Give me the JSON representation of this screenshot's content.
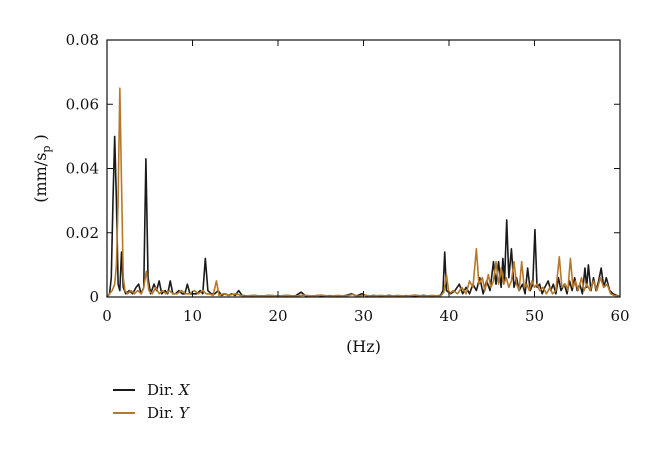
{
  "chart_data": {
    "type": "line",
    "xlabel": "(Hz)",
    "ylabel": {
      "main": "(mm/s",
      "sub": "p",
      "close": " )"
    },
    "xlim": [
      0,
      60
    ],
    "ylim": [
      0,
      0.08
    ],
    "xticks": [
      0,
      10,
      20,
      30,
      40,
      50,
      60
    ],
    "yticks": [
      0,
      0.02,
      0.04,
      0.06,
      0.08
    ],
    "xtick_labels": [
      "0",
      "10",
      "20",
      "30",
      "40",
      "50",
      "60"
    ],
    "ytick_labels": [
      "0",
      "0.02",
      "0.04",
      "0.06",
      "0.08"
    ],
    "grid": false,
    "legend_position": "bottom-left",
    "series": [
      {
        "name": "Dir. X",
        "legend": {
          "prefix": "Dir. ",
          "axis": "X"
        },
        "color": "#1a1a1a",
        "points": [
          [
            0,
            0.0
          ],
          [
            0.3,
            0.001
          ],
          [
            0.5,
            0.006
          ],
          [
            0.7,
            0.03
          ],
          [
            0.9,
            0.05
          ],
          [
            1.1,
            0.03
          ],
          [
            1.3,
            0.004
          ],
          [
            1.5,
            0.002
          ],
          [
            1.7,
            0.014
          ],
          [
            1.9,
            0.003
          ],
          [
            2.2,
            0.001
          ],
          [
            2.6,
            0.002
          ],
          [
            3.0,
            0.001
          ],
          [
            3.4,
            0.003
          ],
          [
            3.7,
            0.004
          ],
          [
            4.0,
            0.001
          ],
          [
            4.3,
            0.003
          ],
          [
            4.55,
            0.043
          ],
          [
            4.8,
            0.006
          ],
          [
            5.1,
            0.001
          ],
          [
            5.5,
            0.004
          ],
          [
            5.8,
            0.002
          ],
          [
            6.1,
            0.005
          ],
          [
            6.4,
            0.001
          ],
          [
            6.8,
            0.002
          ],
          [
            7.1,
            0.001
          ],
          [
            7.4,
            0.005
          ],
          [
            7.7,
            0.001
          ],
          [
            8.0,
            0.001
          ],
          [
            8.4,
            0.002
          ],
          [
            8.8,
            0.001
          ],
          [
            9.1,
            0.001
          ],
          [
            9.4,
            0.004
          ],
          [
            9.7,
            0.001
          ],
          [
            10.1,
            0.001
          ],
          [
            10.5,
            0.001
          ],
          [
            10.9,
            0.002
          ],
          [
            11.2,
            0.001
          ],
          [
            11.5,
            0.012
          ],
          [
            11.8,
            0.002
          ],
          [
            12.2,
            0.001
          ],
          [
            12.6,
            0.001
          ],
          [
            13.0,
            0.002
          ],
          [
            13.4,
            0.0005
          ],
          [
            13.8,
            0.001
          ],
          [
            14.2,
            0.0005
          ],
          [
            14.6,
            0.001
          ],
          [
            15.0,
            0.0005
          ],
          [
            15.4,
            0.002
          ],
          [
            15.8,
            0.0005
          ],
          [
            16.5,
            0.0003
          ],
          [
            17.2,
            0.0005
          ],
          [
            18.0,
            0.0003
          ],
          [
            19.0,
            0.0005
          ],
          [
            20.0,
            0.0003
          ],
          [
            21.0,
            0.0005
          ],
          [
            22.0,
            0.0003
          ],
          [
            22.7,
            0.0015
          ],
          [
            23.3,
            0.0002
          ],
          [
            24.0,
            0.0003
          ],
          [
            24.7,
            0.0005
          ],
          [
            25.3,
            0.0002
          ],
          [
            26.0,
            0.0004
          ],
          [
            27.0,
            0.0002
          ],
          [
            28.0,
            0.0005
          ],
          [
            28.6,
            0.001
          ],
          [
            29.2,
            0.0003
          ],
          [
            29.8,
            0.001
          ],
          [
            30.5,
            0.0002
          ],
          [
            31.2,
            0.0005
          ],
          [
            32.0,
            0.0002
          ],
          [
            33.0,
            0.0005
          ],
          [
            34.0,
            0.0002
          ],
          [
            35.0,
            0.0004
          ],
          [
            36.0,
            0.0002
          ],
          [
            37.0,
            0.0005
          ],
          [
            38.0,
            0.0002
          ],
          [
            39.0,
            0.0005
          ],
          [
            39.3,
            0.002
          ],
          [
            39.5,
            0.014
          ],
          [
            39.7,
            0.002
          ],
          [
            40.2,
            0.001
          ],
          [
            40.7,
            0.002
          ],
          [
            41.2,
            0.004
          ],
          [
            41.6,
            0.001
          ],
          [
            42.0,
            0.003
          ],
          [
            42.4,
            0.001
          ],
          [
            42.8,
            0.004
          ],
          [
            43.2,
            0.002
          ],
          [
            43.6,
            0.006
          ],
          [
            44.0,
            0.001
          ],
          [
            44.4,
            0.005
          ],
          [
            44.8,
            0.002
          ],
          [
            45.2,
            0.011
          ],
          [
            45.5,
            0.004
          ],
          [
            45.8,
            0.011
          ],
          [
            46.1,
            0.003
          ],
          [
            46.3,
            0.012
          ],
          [
            46.5,
            0.005
          ],
          [
            46.75,
            0.024
          ],
          [
            47.0,
            0.006
          ],
          [
            47.3,
            0.015
          ],
          [
            47.6,
            0.003
          ],
          [
            47.9,
            0.006
          ],
          [
            48.2,
            0.002
          ],
          [
            48.6,
            0.004
          ],
          [
            48.9,
            0.001
          ],
          [
            49.2,
            0.009
          ],
          [
            49.5,
            0.002
          ],
          [
            49.8,
            0.004
          ],
          [
            50.05,
            0.021
          ],
          [
            50.3,
            0.003
          ],
          [
            50.6,
            0.004
          ],
          [
            50.9,
            0.001
          ],
          [
            51.2,
            0.003
          ],
          [
            51.6,
            0.005
          ],
          [
            51.9,
            0.002
          ],
          [
            52.2,
            0.004
          ],
          [
            52.5,
            0.001
          ],
          [
            52.8,
            0.006
          ],
          [
            53.1,
            0.002
          ],
          [
            53.5,
            0.004
          ],
          [
            53.8,
            0.001
          ],
          [
            54.1,
            0.005
          ],
          [
            54.4,
            0.002
          ],
          [
            54.7,
            0.006
          ],
          [
            55.0,
            0.002
          ],
          [
            55.3,
            0.004
          ],
          [
            55.6,
            0.001
          ],
          [
            55.9,
            0.009
          ],
          [
            56.1,
            0.003
          ],
          [
            56.3,
            0.01
          ],
          [
            56.6,
            0.002
          ],
          [
            56.9,
            0.006
          ],
          [
            57.2,
            0.002
          ],
          [
            57.5,
            0.005
          ],
          [
            57.8,
            0.009
          ],
          [
            58.1,
            0.003
          ],
          [
            58.4,
            0.006
          ],
          [
            58.8,
            0.002
          ],
          [
            59.2,
            0.001
          ],
          [
            59.6,
            0.0005
          ],
          [
            60,
            0.0002
          ]
        ]
      },
      {
        "name": "Dir. Y",
        "legend": {
          "prefix": "Dir. ",
          "axis": "Y"
        },
        "color": "#b5782a",
        "points": [
          [
            0,
            0.0
          ],
          [
            0.3,
            0.001
          ],
          [
            0.6,
            0.002
          ],
          [
            0.9,
            0.004
          ],
          [
            1.1,
            0.01
          ],
          [
            1.3,
            0.03
          ],
          [
            1.5,
            0.065
          ],
          [
            1.7,
            0.035
          ],
          [
            1.9,
            0.006
          ],
          [
            2.1,
            0.002
          ],
          [
            2.4,
            0.001
          ],
          [
            2.8,
            0.002
          ],
          [
            3.2,
            0.001
          ],
          [
            3.6,
            0.002
          ],
          [
            4.0,
            0.001
          ],
          [
            4.3,
            0.003
          ],
          [
            4.6,
            0.008
          ],
          [
            4.9,
            0.002
          ],
          [
            5.3,
            0.001
          ],
          [
            5.7,
            0.003
          ],
          [
            6.1,
            0.001
          ],
          [
            6.5,
            0.002
          ],
          [
            6.9,
            0.001
          ],
          [
            7.3,
            0.002
          ],
          [
            7.7,
            0.001
          ],
          [
            8.2,
            0.001
          ],
          [
            8.7,
            0.002
          ],
          [
            9.2,
            0.001
          ],
          [
            9.7,
            0.001
          ],
          [
            10.2,
            0.002
          ],
          [
            10.7,
            0.001
          ],
          [
            11.2,
            0.002
          ],
          [
            11.6,
            0.001
          ],
          [
            12.0,
            0.001
          ],
          [
            12.4,
            0.0005
          ],
          [
            12.8,
            0.005
          ],
          [
            13.1,
            0.0005
          ],
          [
            13.6,
            0.001
          ],
          [
            14.2,
            0.0005
          ],
          [
            15.0,
            0.001
          ],
          [
            16.0,
            0.0003
          ],
          [
            17.0,
            0.0005
          ],
          [
            18.0,
            0.0003
          ],
          [
            19.0,
            0.0005
          ],
          [
            20.0,
            0.0003
          ],
          [
            21.0,
            0.0005
          ],
          [
            22.0,
            0.0003
          ],
          [
            23.0,
            0.0006
          ],
          [
            24.0,
            0.0003
          ],
          [
            25.0,
            0.0006
          ],
          [
            26.0,
            0.0003
          ],
          [
            27.0,
            0.0005
          ],
          [
            28.0,
            0.0003
          ],
          [
            28.7,
            0.0008
          ],
          [
            29.3,
            0.0002
          ],
          [
            30.0,
            0.0006
          ],
          [
            31.0,
            0.0003
          ],
          [
            32.0,
            0.0005
          ],
          [
            33.0,
            0.0003
          ],
          [
            34.0,
            0.0005
          ],
          [
            35.0,
            0.0003
          ],
          [
            36.0,
            0.0006
          ],
          [
            37.0,
            0.0003
          ],
          [
            38.0,
            0.0005
          ],
          [
            39.0,
            0.0003
          ],
          [
            39.4,
            0.0015
          ],
          [
            39.7,
            0.007
          ],
          [
            40.0,
            0.001
          ],
          [
            40.5,
            0.002
          ],
          [
            41.0,
            0.001
          ],
          [
            41.5,
            0.003
          ],
          [
            42.0,
            0.001
          ],
          [
            42.4,
            0.005
          ],
          [
            42.8,
            0.003
          ],
          [
            43.2,
            0.015
          ],
          [
            43.5,
            0.004
          ],
          [
            43.9,
            0.006
          ],
          [
            44.2,
            0.002
          ],
          [
            44.6,
            0.007
          ],
          [
            44.9,
            0.003
          ],
          [
            45.2,
            0.005
          ],
          [
            45.5,
            0.011
          ],
          [
            45.8,
            0.004
          ],
          [
            46.1,
            0.009
          ],
          [
            46.4,
            0.004
          ],
          [
            46.7,
            0.006
          ],
          [
            47.0,
            0.003
          ],
          [
            47.3,
            0.005
          ],
          [
            47.6,
            0.011
          ],
          [
            47.9,
            0.004
          ],
          [
            48.2,
            0.002
          ],
          [
            48.5,
            0.011
          ],
          [
            48.8,
            0.003
          ],
          [
            49.1,
            0.004
          ],
          [
            49.4,
            0.002
          ],
          [
            49.7,
            0.005
          ],
          [
            50.0,
            0.003
          ],
          [
            50.3,
            0.004
          ],
          [
            50.6,
            0.002
          ],
          [
            51.0,
            0.003
          ],
          [
            51.4,
            0.001
          ],
          [
            51.8,
            0.003
          ],
          [
            52.1,
            0.001
          ],
          [
            52.5,
            0.002
          ],
          [
            52.9,
            0.0125
          ],
          [
            53.2,
            0.003
          ],
          [
            53.6,
            0.004
          ],
          [
            53.9,
            0.002
          ],
          [
            54.2,
            0.012
          ],
          [
            54.5,
            0.003
          ],
          [
            54.8,
            0.005
          ],
          [
            55.1,
            0.002
          ],
          [
            55.5,
            0.006
          ],
          [
            55.8,
            0.002
          ],
          [
            56.1,
            0.004
          ],
          [
            56.5,
            0.002
          ],
          [
            56.9,
            0.005
          ],
          [
            57.3,
            0.002
          ],
          [
            57.7,
            0.006
          ],
          [
            58.1,
            0.003
          ],
          [
            58.5,
            0.004
          ],
          [
            58.9,
            0.001
          ],
          [
            59.3,
            0.0005
          ],
          [
            60,
            0.0002
          ]
        ]
      }
    ]
  }
}
